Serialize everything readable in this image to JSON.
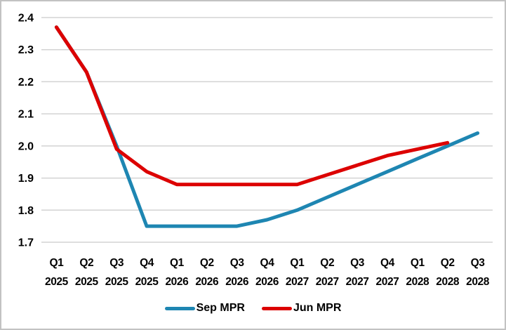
{
  "window": {
    "background": "#ffffff",
    "border_color": "#c2c2c2"
  },
  "chart_data": {
    "type": "line",
    "title": "",
    "xlabel": "",
    "ylabel": "",
    "ylim": [
      1.7,
      2.4
    ],
    "yticks": [
      "2.4",
      "2.3",
      "2.2",
      "2.1",
      "2.0",
      "1.9",
      "1.8",
      "1.7"
    ],
    "grid": "horizontal",
    "gridline_color": "#d3d3d3",
    "legend_position": "bottom",
    "categories": [
      {
        "q": "Q1",
        "y": "2025"
      },
      {
        "q": "Q2",
        "y": "2025"
      },
      {
        "q": "Q3",
        "y": "2025"
      },
      {
        "q": "Q4",
        "y": "2025"
      },
      {
        "q": "Q1",
        "y": "2026"
      },
      {
        "q": "Q2",
        "y": "2026"
      },
      {
        "q": "Q3",
        "y": "2026"
      },
      {
        "q": "Q4",
        "y": "2026"
      },
      {
        "q": "Q1",
        "y": "2027"
      },
      {
        "q": "Q2",
        "y": "2027"
      },
      {
        "q": "Q3",
        "y": "2027"
      },
      {
        "q": "Q4",
        "y": "2027"
      },
      {
        "q": "Q1",
        "y": "2028"
      },
      {
        "q": "Q2",
        "y": "2028"
      },
      {
        "q": "Q3",
        "y": "2028"
      }
    ],
    "series": [
      {
        "name": "Sep MPR",
        "color": "#1e86b2",
        "values": [
          2.37,
          2.23,
          2.0,
          1.75,
          1.75,
          1.75,
          1.75,
          1.77,
          1.8,
          1.84,
          1.88,
          1.92,
          1.96,
          2.0,
          2.04
        ]
      },
      {
        "name": "Jun MPR",
        "color": "#dc0000",
        "values": [
          2.37,
          2.23,
          1.99,
          1.92,
          1.88,
          1.88,
          1.88,
          1.88,
          1.88,
          1.91,
          1.94,
          1.97,
          1.99,
          2.01,
          null
        ]
      }
    ]
  }
}
